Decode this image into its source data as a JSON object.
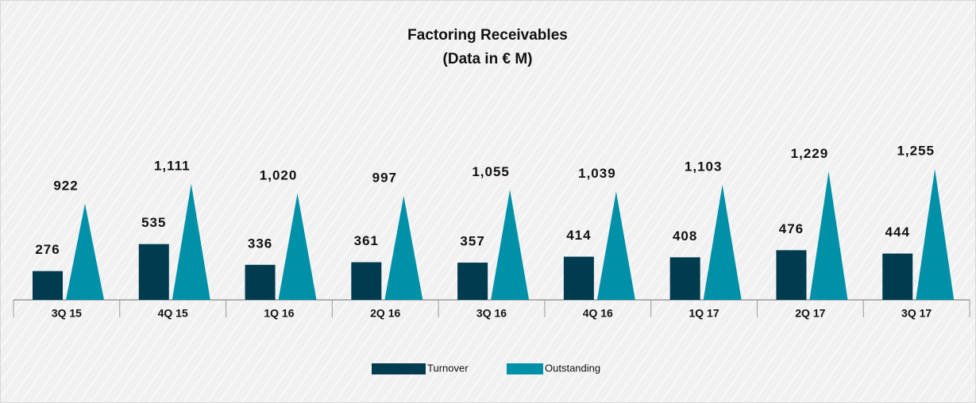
{
  "chart_data": {
    "type": "bar_triangle",
    "title": "Factoring Receivables",
    "subtitle": "(Data in € M)",
    "categories": [
      "3Q 15",
      "4Q 15",
      "1Q 16",
      "2Q 16",
      "3Q 16",
      "4Q 16",
      "1Q 17",
      "2Q 17",
      "3Q 17"
    ],
    "series": [
      {
        "name": "Turnover",
        "color": "#003b4f",
        "values": [
          276,
          535,
          336,
          361,
          357,
          414,
          408,
          476,
          444
        ]
      },
      {
        "name": "Outstanding",
        "color": "#0090a8",
        "values": [
          922,
          1111,
          1020,
          997,
          1055,
          1039,
          1103,
          1229,
          1255
        ],
        "value_labels": [
          "922",
          "1,111",
          "1,020",
          "997",
          "1,055",
          "1,039",
          "1,103",
          "1,229",
          "1,255"
        ]
      }
    ],
    "legend": "bottom"
  }
}
